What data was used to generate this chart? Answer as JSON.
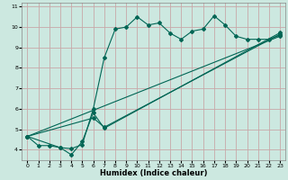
{
  "title": "",
  "xlabel": "Humidex (Indice chaleur)",
  "bg_color": "#cce8e0",
  "grid_color": "#c8a8a8",
  "line_color": "#006655",
  "xlim": [
    -0.5,
    23.5
  ],
  "ylim": [
    3.5,
    11.2
  ],
  "xticks": [
    0,
    1,
    2,
    3,
    4,
    5,
    6,
    7,
    8,
    9,
    10,
    11,
    12,
    13,
    14,
    15,
    16,
    17,
    18,
    19,
    20,
    21,
    22,
    23
  ],
  "yticks": [
    4,
    5,
    6,
    7,
    8,
    9,
    10,
    11
  ],
  "line1_x": [
    0,
    1,
    2,
    3,
    4,
    5,
    6,
    7,
    8,
    9,
    10,
    11,
    12,
    13,
    14,
    15,
    16,
    17,
    18,
    19,
    20,
    21,
    22,
    23
  ],
  "line1_y": [
    4.65,
    4.2,
    4.2,
    4.1,
    4.05,
    4.25,
    6.0,
    8.5,
    9.9,
    10.0,
    10.5,
    10.1,
    10.2,
    9.7,
    9.4,
    9.8,
    9.9,
    10.55,
    10.1,
    9.55,
    9.4,
    9.4,
    9.4,
    9.6
  ],
  "line2_x": [
    0,
    23
  ],
  "line2_y": [
    4.65,
    9.55
  ],
  "line3_x": [
    0,
    6,
    7,
    23
  ],
  "line3_y": [
    4.65,
    5.55,
    5.1,
    9.65
  ],
  "line4_x": [
    0,
    3,
    4,
    5,
    6,
    7,
    23
  ],
  "line4_y": [
    4.65,
    4.1,
    3.75,
    4.4,
    5.8,
    5.05,
    9.72
  ]
}
